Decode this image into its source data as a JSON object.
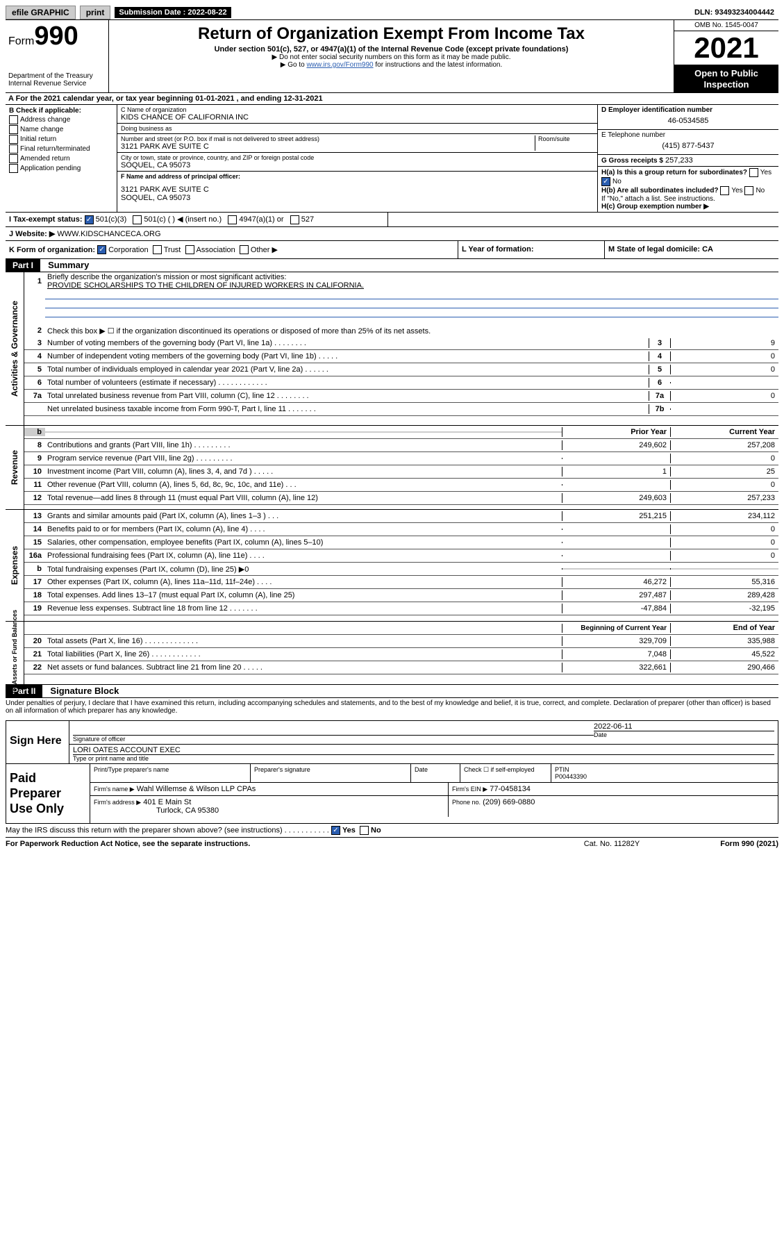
{
  "topbar": {
    "efile": "efile GRAPHIC",
    "print": "print",
    "submission_label": "Submission Date : 2022-08-22",
    "dln": "DLN: 93493234004442"
  },
  "header": {
    "form": "Form",
    "form_num": "990",
    "dept": "Department of the Treasury",
    "irs": "Internal Revenue Service",
    "title": "Return of Organization Exempt From Income Tax",
    "under": "Under section 501(c), 527, or 4947(a)(1) of the Internal Revenue Code (except private foundations)",
    "ssn": "▶ Do not enter social security numbers on this form as it may be made public.",
    "goto_pre": "▶ Go to ",
    "goto_link": "www.irs.gov/Form990",
    "goto_post": " for instructions and the latest information.",
    "omb": "OMB No. 1545-0047",
    "year": "2021",
    "inspect1": "Open to Public",
    "inspect2": "Inspection"
  },
  "A": {
    "text": "A For the 2021 calendar year, or tax year beginning 01-01-2021   , and ending 12-31-2021"
  },
  "B": {
    "label": "B Check if applicable:",
    "items": [
      "Address change",
      "Name change",
      "Initial return",
      "Final return/terminated",
      "Amended return",
      "Application pending"
    ]
  },
  "C": {
    "name_label": "C Name of organization",
    "name": "KIDS CHANCE OF CALIFORNIA INC",
    "dba_label": "Doing business as",
    "dba": "",
    "street_label": "Number and street (or P.O. box if mail is not delivered to street address)",
    "room_label": "Room/suite",
    "street": "3121 PARK AVE SUITE C",
    "city_label": "City or town, state or province, country, and ZIP or foreign postal code",
    "city": "SOQUEL, CA  95073",
    "F_label": "F Name and address of principal officer:",
    "F_addr1": "3121 PARK AVE SUITE C",
    "F_addr2": "SOQUEL, CA  95073"
  },
  "D": {
    "ein_label": "D Employer identification number",
    "ein": "46-0534585",
    "tel_label": "E Telephone number",
    "tel": "(415) 877-5437",
    "gross_label": "G Gross receipts $",
    "gross": "257,233"
  },
  "H": {
    "a": "H(a)  Is this a group return for subordinates?",
    "a_yes": "Yes",
    "a_no": "No",
    "b": "H(b)  Are all subordinates included?",
    "b_yes": "Yes",
    "b_no": "No",
    "b_note": "If \"No,\" attach a list. See instructions.",
    "c": "H(c)  Group exemption number ▶"
  },
  "I": {
    "label": "I   Tax-exempt status:",
    "opts": [
      "501(c)(3)",
      "501(c) (  ) ◀ (insert no.)",
      "4947(a)(1) or",
      "527"
    ]
  },
  "J": {
    "label": "J   Website: ▶",
    "val": "WWW.KIDSCHANCECA.ORG"
  },
  "K": {
    "label": "K Form of organization:",
    "opts": [
      "Corporation",
      "Trust",
      "Association",
      "Other ▶"
    ],
    "L": "L Year of formation:",
    "M": "M State of legal domicile: CA"
  },
  "part1": {
    "hdr": "Part I",
    "title": "Summary"
  },
  "gov": {
    "tab": "Activities & Governance",
    "l1a": "Briefly describe the organization's mission or most significant activities:",
    "l1b": "PROVIDE SCHOLARSHIPS TO THE CHILDREN OF INJURED WORKERS IN CALIFORNIA.",
    "l2": "Check this box ▶ ☐  if the organization discontinued its operations or disposed of more than 25% of its net assets.",
    "lines": [
      {
        "n": "3",
        "d": "Number of voting members of the governing body (Part VI, line 1a)   .   .   .   .   .   .   .   .",
        "b": "3",
        "v": "9"
      },
      {
        "n": "4",
        "d": "Number of independent voting members of the governing body (Part VI, line 1b)   .   .   .   .   .",
        "b": "4",
        "v": "0"
      },
      {
        "n": "5",
        "d": "Total number of individuals employed in calendar year 2021 (Part V, line 2a)   .   .   .   .   .   .",
        "b": "5",
        "v": "0"
      },
      {
        "n": "6",
        "d": "Total number of volunteers (estimate if necessary)   .   .   .   .   .   .   .   .   .   .   .   .",
        "b": "6",
        "v": ""
      },
      {
        "n": "7a",
        "d": "Total unrelated business revenue from Part VIII, column (C), line 12   .   .   .   .   .   .   .   .",
        "b": "7a",
        "v": "0"
      },
      {
        "n": "",
        "d": "Net unrelated business taxable income from Form 990-T, Part I, line 11   .   .   .   .   .   .   .",
        "b": "7b",
        "v": ""
      }
    ]
  },
  "rev": {
    "tab": "Revenue",
    "hdr1": "Prior Year",
    "hdr2": "Current Year",
    "lines": [
      {
        "n": "8",
        "d": "Contributions and grants (Part VIII, line 1h)   .   .   .   .   .   .   .   .   .",
        "v1": "249,602",
        "v2": "257,208"
      },
      {
        "n": "9",
        "d": "Program service revenue (Part VIII, line 2g)   .   .   .   .   .   .   .   .   .",
        "v1": "",
        "v2": "0"
      },
      {
        "n": "10",
        "d": "Investment income (Part VIII, column (A), lines 3, 4, and 7d )   .   .   .   .   .",
        "v1": "1",
        "v2": "25"
      },
      {
        "n": "11",
        "d": "Other revenue (Part VIII, column (A), lines 5, 6d, 8c, 9c, 10c, and 11e)   .   .   .",
        "v1": "",
        "v2": "0"
      },
      {
        "n": "12",
        "d": "Total revenue—add lines 8 through 11 (must equal Part VIII, column (A), line 12)",
        "v1": "249,603",
        "v2": "257,233"
      }
    ]
  },
  "exp": {
    "tab": "Expenses",
    "lines": [
      {
        "n": "13",
        "d": "Grants and similar amounts paid (Part IX, column (A), lines 1–3 )   .   .   .",
        "v1": "251,215",
        "v2": "234,112"
      },
      {
        "n": "14",
        "d": "Benefits paid to or for members (Part IX, column (A), line 4)   .   .   .   .",
        "v1": "",
        "v2": "0"
      },
      {
        "n": "15",
        "d": "Salaries, other compensation, employee benefits (Part IX, column (A), lines 5–10)",
        "v1": "",
        "v2": "0"
      },
      {
        "n": "16a",
        "d": "Professional fundraising fees (Part IX, column (A), line 11e)   .   .   .   .",
        "v1": "",
        "v2": "0"
      },
      {
        "n": "b",
        "d": "Total fundraising expenses (Part IX, column (D), line 25) ▶0",
        "v1": "grey",
        "v2": "grey"
      },
      {
        "n": "17",
        "d": "Other expenses (Part IX, column (A), lines 11a–11d, 11f–24e)   .   .   .   .",
        "v1": "46,272",
        "v2": "55,316"
      },
      {
        "n": "18",
        "d": "Total expenses. Add lines 13–17 (must equal Part IX, column (A), line 25)",
        "v1": "297,487",
        "v2": "289,428"
      },
      {
        "n": "19",
        "d": "Revenue less expenses. Subtract line 18 from line 12   .   .   .   .   .   .   .",
        "v1": "-47,884",
        "v2": "-32,195"
      }
    ]
  },
  "net": {
    "tab": "Net Assets or Fund Balances",
    "hdr1": "Beginning of Current Year",
    "hdr2": "End of Year",
    "lines": [
      {
        "n": "20",
        "d": "Total assets (Part X, line 16)   .   .   .   .   .   .   .   .   .   .   .   .   .",
        "v1": "329,709",
        "v2": "335,988"
      },
      {
        "n": "21",
        "d": "Total liabilities (Part X, line 26)   .   .   .   .   .   .   .   .   .   .   .   .",
        "v1": "7,048",
        "v2": "45,522"
      },
      {
        "n": "22",
        "d": "Net assets or fund balances. Subtract line 21 from line 20   .   .   .   .   .",
        "v1": "322,661",
        "v2": "290,466"
      }
    ]
  },
  "part2": {
    "hdr": "Part II",
    "title": "Signature Block",
    "decl": "Under penalties of perjury, I declare that I have examined this return, including accompanying schedules and statements, and to the best of my knowledge and belief, it is true, correct, and complete. Declaration of preparer (other than officer) is based on all information of which preparer has any knowledge."
  },
  "sign": {
    "left": "Sign Here",
    "sig_lbl": "Signature of officer",
    "date": "2022-06-11",
    "date_lbl": "Date",
    "name": "LORI OATES  ACCOUNT EXEC",
    "name_lbl": "Type or print name and title"
  },
  "prep": {
    "left": "Paid Preparer Use Only",
    "h1": "Print/Type preparer's name",
    "h2": "Preparer's signature",
    "h3": "Date",
    "h4_pre": "Check ☐ if self-employed",
    "h5": "PTIN",
    "ptin": "P00443390",
    "firm_label": "Firm's name    ▶",
    "firm": "Wahl Willemse & Wilson LLP CPAs",
    "ein_label": "Firm's EIN ▶",
    "ein": "77-0458134",
    "addr_label": "Firm's address ▶",
    "addr1": "401 E Main St",
    "addr2": "Turlock, CA  95380",
    "phone_label": "Phone no.",
    "phone": "(209) 669-0880"
  },
  "footer": {
    "discuss": "May the IRS discuss this return with the preparer shown above? (see instructions)   .   .   .   .   .   .   .   .   .   .   .",
    "yes": "Yes",
    "no": "No",
    "pra": "For Paperwork Reduction Act Notice, see the separate instructions.",
    "cat": "Cat. No. 11282Y",
    "form": "Form 990 (2021)"
  }
}
